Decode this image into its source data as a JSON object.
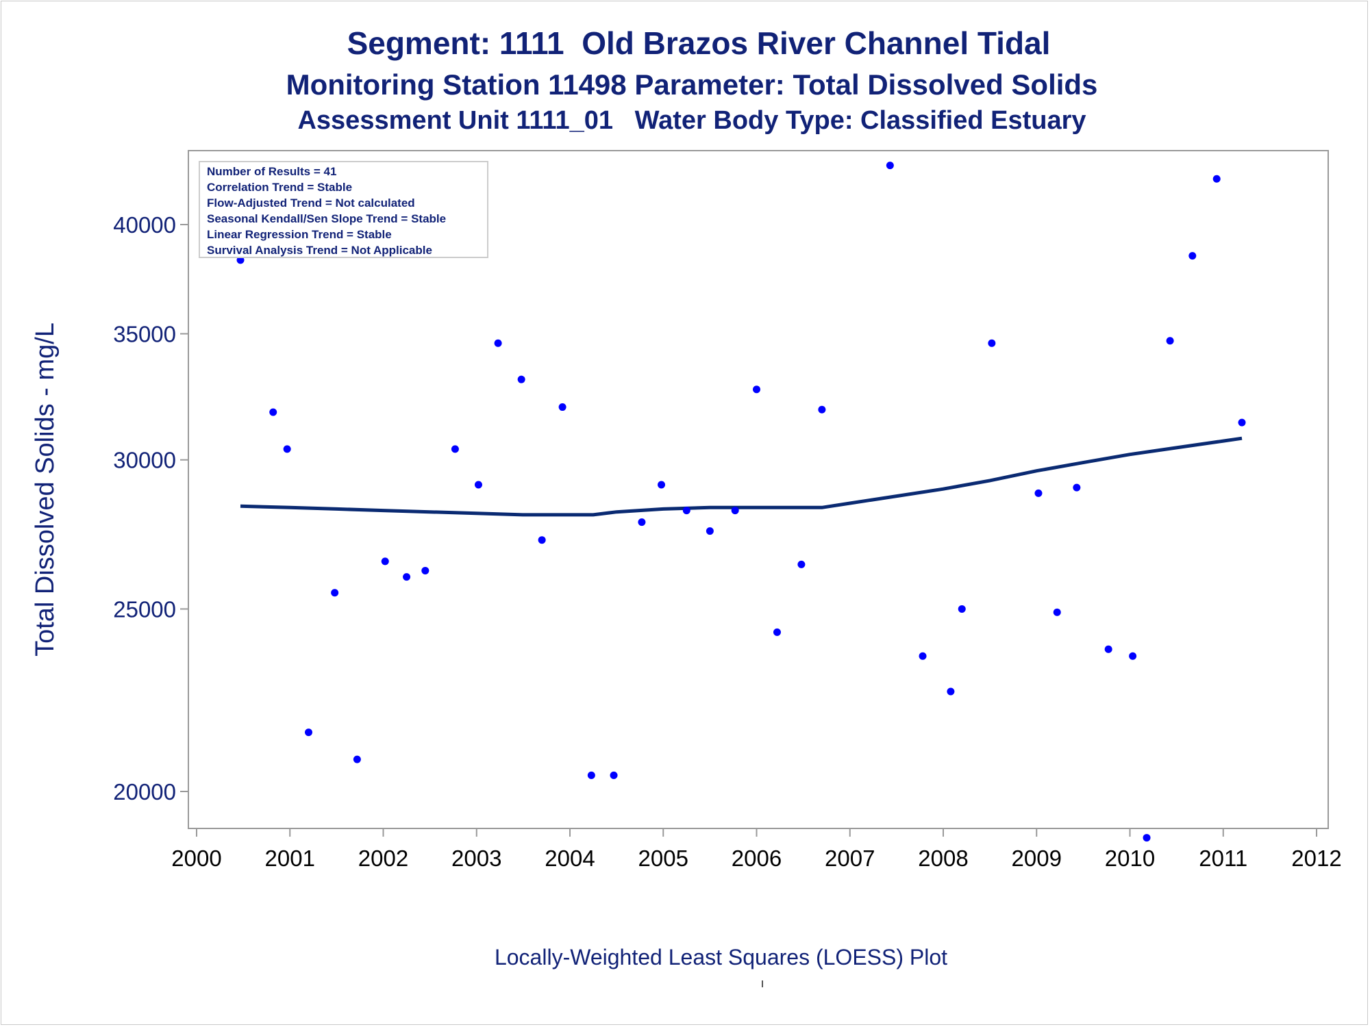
{
  "titles": {
    "line1": "Segment: 1111  Old Brazos River Channel Tidal",
    "line2": "Monitoring Station 11498 Parameter: Total Dissolved Solids",
    "line3": "Assessment Unit 1111_01   Water Body Type: Classified Estuary"
  },
  "footnote": "Locally-Weighted Least Squares (LOESS) Plot",
  "colors": {
    "text": "#112277",
    "points": "#0000ff",
    "loess_line": "#0a2a72",
    "axis": "#999999"
  },
  "chart_data": {
    "type": "scatter",
    "ylabel": "Total Dissolved Solids - mg/L",
    "xlabel": "",
    "xlim": [
      2000,
      2012
    ],
    "ylim": [
      19000,
      43000
    ],
    "y_scale": "log",
    "x_ticks": [
      "2000",
      "2001",
      "2002",
      "2003",
      "2004",
      "2005",
      "2006",
      "2007",
      "2008",
      "2009",
      "2010",
      "2011",
      "2012"
    ],
    "y_ticks": [
      20000,
      25000,
      30000,
      35000,
      40000
    ],
    "y_tick_labels": [
      "20000",
      "25000",
      "30000",
      "35000",
      "40000"
    ],
    "grid": false,
    "legend_position": "top-left",
    "stats_box": [
      "Number of Results = 41",
      "Correlation Trend = Stable",
      "Flow-Adjusted Trend = Not calculated",
      "Seasonal Kendall/Sen Slope Trend = Stable",
      "Linear Regression Trend = Stable",
      "Survival Analysis Trend = Not Applicable"
    ],
    "series": [
      {
        "type": "scatter",
        "x": [
          2000.47,
          2000.82,
          2000.97,
          2001.2,
          2001.48,
          2001.72,
          2002.02,
          2002.25,
          2002.45,
          2002.77,
          2003.02,
          2003.23,
          2003.48,
          2003.7,
          2003.92,
          2004.23,
          2004.47,
          2004.77,
          2004.98,
          2005.25,
          2005.5,
          2005.77,
          2006.0,
          2006.22,
          2006.48,
          2006.7,
          2007.43,
          2007.78,
          2008.08,
          2008.2,
          2008.52,
          2009.02,
          2009.22,
          2009.43,
          2009.77,
          2010.03,
          2010.18,
          2010.43,
          2010.67,
          2010.93,
          2011.2
        ],
        "y": [
          38300,
          31800,
          30400,
          21500,
          25500,
          20800,
          26500,
          26000,
          26200,
          30400,
          29100,
          34600,
          33100,
          27200,
          32000,
          20400,
          20400,
          27800,
          29100,
          28200,
          27500,
          28200,
          32700,
          24300,
          26400,
          31900,
          43000,
          23600,
          22600,
          25000,
          34600,
          28800,
          24900,
          29000,
          23800,
          23600,
          18900,
          34700,
          38500,
          42300,
          31400
        ]
      },
      {
        "type": "line",
        "name": "",
        "x": [
          2000.47,
          2001.0,
          2001.5,
          2002.0,
          2002.5,
          2003.0,
          2003.5,
          2004.0,
          2004.25,
          2004.5,
          2005.0,
          2005.5,
          2006.0,
          2006.5,
          2006.7,
          2007.0,
          2007.5,
          2008.0,
          2008.5,
          2009.0,
          2009.5,
          2010.0,
          2010.5,
          2011.0,
          2011.2
        ],
        "y": [
          28350,
          28300,
          28250,
          28200,
          28150,
          28100,
          28050,
          28050,
          28050,
          28150,
          28250,
          28300,
          28300,
          28300,
          28300,
          28450,
          28700,
          28950,
          29250,
          29600,
          29900,
          30200,
          30450,
          30700,
          30800
        ]
      }
    ]
  }
}
